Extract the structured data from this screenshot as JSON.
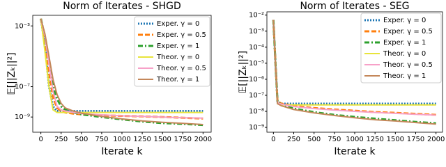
{
  "chart_data": [
    {
      "type": "line",
      "title": "Norm of Iterates - SHGD",
      "x_label": "Iterate k",
      "y_label": "𝔼[||Zₖ||²]",
      "log_y": true,
      "legend": "upper right",
      "xlim": [
        -100,
        2100
      ],
      "xticks": [
        0,
        250,
        500,
        750,
        1000,
        1250,
        1500,
        1750,
        2000
      ],
      "ylim": [
        1e-10,
        0.005
      ],
      "yticks": [
        {
          "value": 0.001,
          "label": "10⁻³"
        },
        {
          "value": 1e-07,
          "label": "10⁻⁷"
        },
        {
          "value": 1e-09,
          "label": "10⁻⁹"
        }
      ],
      "x": [
        0,
        50,
        100,
        150,
        200,
        250,
        300,
        400,
        500,
        750,
        1000,
        1250,
        1500,
        1750,
        2000
      ],
      "series": [
        {
          "name": "Exper. γ = 0",
          "color": "#1f77b4",
          "style": "dotted",
          "values": [
            0.003,
            5e-05,
            1e-07,
            5e-09,
            2.5e-09,
            2.5e-09,
            2.5e-09,
            2.5e-09,
            2.5e-09,
            2.5e-09,
            2.5e-09,
            2.5e-09,
            2.5e-09,
            2.5e-09,
            2.5e-09
          ]
        },
        {
          "name": "Exper. γ = 0.5",
          "color": "#ff7f0e",
          "style": "dashed",
          "values": [
            0.003,
            0.0001,
            1e-06,
            2e-08,
            4e-09,
            2.5e-09,
            2e-09,
            1.7e-09,
            1.5e-09,
            1.3e-09,
            1.2e-09,
            1.1e-09,
            1e-09,
            9e-10,
            8e-10
          ]
        },
        {
          "name": "Exper. γ = 1",
          "color": "#2ca02c",
          "style": "dashdot",
          "values": [
            0.003,
            0.0002,
            5e-06,
            1e-07,
            1.5e-08,
            5e-09,
            3e-09,
            2e-09,
            1.5e-09,
            1e-09,
            7e-10,
            5e-10,
            4e-10,
            3.5e-10,
            3e-10
          ]
        },
        {
          "name": "Theor. γ = 0",
          "color": "#e8e43a",
          "style": "solid",
          "values": [
            0.003,
            2e-05,
            1e-07,
            3e-09,
            2e-09,
            2e-09,
            2e-09,
            2e-09,
            2e-09,
            2e-09,
            2e-09,
            2e-09,
            2e-09,
            2e-09,
            2e-09
          ]
        },
        {
          "name": "Theor. γ = 0.5",
          "color": "#f7a1c8",
          "style": "solid",
          "values": [
            0.003,
            0.0002,
            3e-06,
            5e-08,
            5e-09,
            3e-09,
            2.5e-09,
            2e-09,
            1.7e-09,
            1.4e-09,
            1.2e-09,
            1.1e-09,
            1e-09,
            9e-10,
            8.5e-10
          ]
        },
        {
          "name": "Theor. γ = 1",
          "color": "#c4875a",
          "style": "solid",
          "values": [
            0.003,
            0.0003,
            1e-05,
            3e-07,
            3e-08,
            8e-09,
            4e-09,
            2.5e-09,
            1.8e-09,
            1.1e-09,
            7.5e-10,
            5.5e-10,
            4.5e-10,
            3.8e-10,
            3.2e-10
          ]
        }
      ]
    },
    {
      "type": "line",
      "title": "Norm of Iterates - SEG",
      "x_label": "Iterate k",
      "y_label": "𝔼[||Zₖ||²]",
      "log_y": true,
      "legend": "upper right",
      "xlim": [
        -80,
        2080
      ],
      "xticks": [
        0,
        250,
        500,
        750,
        1000,
        1250,
        1500,
        1750,
        2000
      ],
      "ylim": [
        5e-10,
        0.016
      ],
      "yticks": [
        {
          "value": 0.01,
          "label": "10⁻²"
        },
        {
          "value": 0.001,
          "label": "10⁻³"
        },
        {
          "value": 0.0001,
          "label": "10⁻⁴"
        },
        {
          "value": 1e-05,
          "label": "10⁻⁵"
        },
        {
          "value": 1e-06,
          "label": "10⁻⁶"
        },
        {
          "value": 1e-07,
          "label": "10⁻⁷"
        },
        {
          "value": 1e-08,
          "label": "10⁻⁸"
        },
        {
          "value": 1e-09,
          "label": "10⁻⁹"
        }
      ],
      "x": [
        0,
        25,
        50,
        100,
        250,
        500,
        750,
        1000,
        1250,
        1500,
        1750,
        2000
      ],
      "series": [
        {
          "name": "Exper. γ = 0",
          "color": "#1f77b4",
          "style": "dotted",
          "values": [
            0.005,
            1e-05,
            4e-08,
            3e-08,
            3e-08,
            3e-08,
            3e-08,
            3e-08,
            3e-08,
            3e-08,
            3e-08,
            3e-08
          ]
        },
        {
          "name": "Exper. γ = 0.5",
          "color": "#ff7f0e",
          "style": "dashed",
          "values": [
            0.005,
            1e-05,
            4e-08,
            3e-08,
            2.2e-08,
            1.6e-08,
            1.3e-08,
            1.1e-08,
            9e-09,
            8e-09,
            7e-09,
            6e-09
          ]
        },
        {
          "name": "Exper. γ = 1",
          "color": "#2ca02c",
          "style": "dashdot",
          "values": [
            0.005,
            1e-05,
            4e-08,
            2.5e-08,
            1.5e-08,
            9e-09,
            6e-09,
            4.5e-09,
            3.5e-09,
            2.8e-09,
            2.2e-09,
            1.8e-09
          ]
        },
        {
          "name": "Theor. γ = 0",
          "color": "#e8e43a",
          "style": "solid",
          "values": [
            0.005,
            1e-05,
            3e-08,
            2.5e-08,
            2.5e-08,
            2.5e-08,
            2.5e-08,
            2.5e-08,
            2.5e-08,
            2.5e-08,
            2.5e-08,
            2.5e-08
          ]
        },
        {
          "name": "Theor. γ = 0.5",
          "color": "#f7a1c8",
          "style": "solid",
          "values": [
            0.005,
            1e-05,
            3.5e-08,
            2.8e-08,
            2e-08,
            1.5e-08,
            1.2e-08,
            1e-08,
            8.5e-09,
            7.5e-09,
            6.5e-09,
            5.8e-09
          ]
        },
        {
          "name": "Theor. γ = 1",
          "color": "#c4875a",
          "style": "solid",
          "values": [
            0.005,
            1e-05,
            3e-08,
            2.2e-08,
            1.3e-08,
            8e-09,
            5.5e-09,
            4e-09,
            3e-09,
            2.5e-09,
            2e-09,
            1.6e-09
          ]
        }
      ]
    }
  ]
}
